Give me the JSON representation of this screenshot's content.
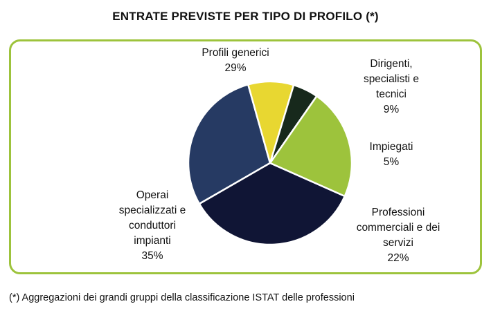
{
  "chart_data": {
    "type": "pie",
    "title": "ENTRATE PREVISTE PER TIPO DI PROFILO (*)",
    "slices": [
      {
        "label_lines": [
          "Profili generici"
        ],
        "value_label": "29%",
        "value": 29,
        "color": "#263a63"
      },
      {
        "label_lines": [
          "Dirigenti,",
          "specialisti e",
          "tecnici"
        ],
        "value_label": "9%",
        "value": 9,
        "color": "#e8d731"
      },
      {
        "label_lines": [
          "Impiegati"
        ],
        "value_label": "5%",
        "value": 5,
        "color": "#17291c"
      },
      {
        "label_lines": [
          "Professioni",
          "commerciali e dei",
          "servizi"
        ],
        "value_label": "22%",
        "value": 22,
        "color": "#9dc33c"
      },
      {
        "label_lines": [
          "Operai",
          "specializzati e",
          "conduttori",
          "impianti"
        ],
        "value_label": "35%",
        "value": 35,
        "color": "#101535"
      }
    ],
    "footnote": "(*) Aggregazioni dei grandi gruppi della classificazione ISTAT delle professioni"
  },
  "colors": {
    "frame_border": "#9dc33c",
    "slice_separator": "#ffffff"
  }
}
